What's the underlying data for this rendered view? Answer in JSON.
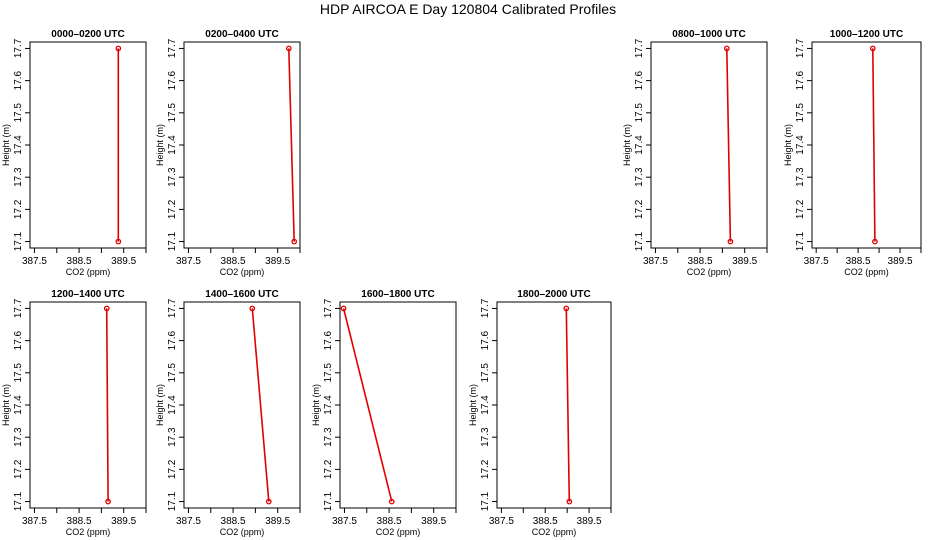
{
  "title": "HDP AIRCOA E  Day 120804  Calibrated Profiles",
  "chart_data": [
    {
      "type": "line",
      "title": "0000–0200 UTC",
      "xlabel": "CO2 (ppm)",
      "ylabel": "Height (m)",
      "xlim": [
        387.4,
        390.0
      ],
      "ylim": [
        17.08,
        17.72
      ],
      "xticks": [
        "387.5",
        "388.5",
        "389.5"
      ],
      "yticks": [
        "17.1",
        "17.2",
        "17.3",
        "17.4",
        "17.5",
        "17.6",
        "17.7"
      ],
      "series": [
        {
          "x": [
            389.38,
            389.38
          ],
          "y": [
            17.1,
            17.7
          ]
        }
      ],
      "color": "#e00000"
    },
    {
      "type": "line",
      "title": "0200–0400 UTC",
      "xlabel": "CO2 (ppm)",
      "ylabel": "Height (m)",
      "xlim": [
        387.4,
        390.0
      ],
      "ylim": [
        17.08,
        17.72
      ],
      "xticks": [
        "387.5",
        "388.5",
        "389.5"
      ],
      "yticks": [
        "17.1",
        "17.2",
        "17.3",
        "17.4",
        "17.5",
        "17.6",
        "17.7"
      ],
      "series": [
        {
          "x": [
            389.87,
            389.75
          ],
          "y": [
            17.1,
            17.7
          ]
        }
      ],
      "color": "#e00000"
    },
    {
      "type": "line",
      "title": "0800–1000 UTC",
      "xlabel": "CO2 (ppm)",
      "ylabel": "Height (m)",
      "xlim": [
        387.4,
        390.0
      ],
      "ylim": [
        17.08,
        17.72
      ],
      "xticks": [
        "387.5",
        "388.5",
        "389.5"
      ],
      "yticks": [
        "17.1",
        "17.2",
        "17.3",
        "17.4",
        "17.5",
        "17.6",
        "17.7"
      ],
      "series": [
        {
          "x": [
            389.18,
            389.1
          ],
          "y": [
            17.1,
            17.7
          ]
        }
      ],
      "color": "#e00000"
    },
    {
      "type": "line",
      "title": "1000–1200 UTC",
      "xlabel": "CO2 (ppm)",
      "ylabel": "Height (m)",
      "xlim": [
        387.4,
        390.0
      ],
      "ylim": [
        17.08,
        17.72
      ],
      "xticks": [
        "387.5",
        "388.5",
        "389.5"
      ],
      "yticks": [
        "17.1",
        "17.2",
        "17.3",
        "17.4",
        "17.5",
        "17.6",
        "17.7"
      ],
      "series": [
        {
          "x": [
            388.9,
            388.85
          ],
          "y": [
            17.1,
            17.7
          ]
        }
      ],
      "color": "#e00000"
    },
    {
      "type": "line",
      "title": "1200–1400 UTC",
      "xlabel": "CO2 (ppm)",
      "ylabel": "Height (m)",
      "xlim": [
        387.4,
        390.0
      ],
      "ylim": [
        17.08,
        17.72
      ],
      "xticks": [
        "387.5",
        "388.5",
        "389.5"
      ],
      "yticks": [
        "17.1",
        "17.2",
        "17.3",
        "17.4",
        "17.5",
        "17.6",
        "17.7"
      ],
      "series": [
        {
          "x": [
            389.15,
            389.12
          ],
          "y": [
            17.1,
            17.7
          ]
        }
      ],
      "color": "#e00000"
    },
    {
      "type": "line",
      "title": "1400–1600 UTC",
      "xlabel": "CO2 (ppm)",
      "ylabel": "Height (m)",
      "xlim": [
        387.4,
        390.0
      ],
      "ylim": [
        17.08,
        17.72
      ],
      "xticks": [
        "387.5",
        "388.5",
        "389.5"
      ],
      "yticks": [
        "17.1",
        "17.2",
        "17.3",
        "17.4",
        "17.5",
        "17.6",
        "17.7"
      ],
      "series": [
        {
          "x": [
            389.3,
            388.93
          ],
          "y": [
            17.1,
            17.7
          ]
        }
      ],
      "color": "#e00000"
    },
    {
      "type": "line",
      "title": "1600–1800 UTC",
      "xlabel": "CO2 (ppm)",
      "ylabel": "Height (m)",
      "xlim": [
        387.4,
        390.0
      ],
      "ylim": [
        17.08,
        17.72
      ],
      "xticks": [
        "387.5",
        "388.5",
        "389.5"
      ],
      "yticks": [
        "17.1",
        "17.2",
        "17.3",
        "17.4",
        "17.5",
        "17.6",
        "17.7"
      ],
      "series": [
        {
          "x": [
            388.56,
            387.48
          ],
          "y": [
            17.1,
            17.7
          ]
        }
      ],
      "color": "#e00000"
    },
    {
      "type": "line",
      "title": "1800–2000 UTC",
      "xlabel": "CO2 (ppm)",
      "ylabel": "Height (m)",
      "xlim": [
        387.4,
        390.0
      ],
      "ylim": [
        17.08,
        17.72
      ],
      "xticks": [
        "387.5",
        "388.5",
        "389.5"
      ],
      "yticks": [
        "17.1",
        "17.2",
        "17.3",
        "17.4",
        "17.5",
        "17.6",
        "17.7"
      ],
      "series": [
        {
          "x": [
            389.05,
            388.98
          ],
          "y": [
            17.1,
            17.7
          ]
        }
      ],
      "color": "#e00000"
    }
  ]
}
